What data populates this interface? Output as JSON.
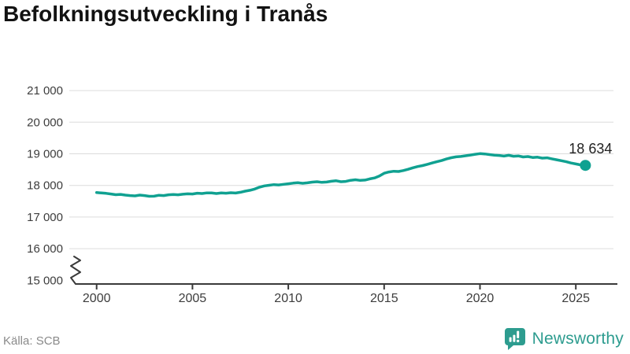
{
  "title": "Befolkningsutveckling i Tranås",
  "source": "Källa: SCB",
  "brand": {
    "name": "Newsworthy",
    "icon": "bar-chart-speech-bubble-icon",
    "color": "#2d9c8f"
  },
  "colors": {
    "line": "#10a191",
    "marker": "#10a191",
    "grid": "#dcdcdc",
    "axis": "#3a3a3a",
    "tick_label": "#3d3d3d",
    "title": "#121212",
    "source": "#8a8a8a",
    "annotation": "#222222",
    "background": "#ffffff"
  },
  "chart_data": {
    "type": "line",
    "title": "Befolkningsutveckling i Tranås",
    "xlabel": "",
    "ylabel": "",
    "legend": "none",
    "grid": "horizontal",
    "axis_break_at_bottom": true,
    "x_range": [
      2000,
      2025.5
    ],
    "ylim": [
      15000,
      21000
    ],
    "x_ticks": [
      2000,
      2005,
      2010,
      2015,
      2020,
      2025
    ],
    "y_ticks": [
      {
        "value": 15000,
        "label": "15 000",
        "gridline": false
      },
      {
        "value": 16000,
        "label": "16 000",
        "gridline": true
      },
      {
        "value": 17000,
        "label": "17 000",
        "gridline": true
      },
      {
        "value": 18000,
        "label": "18 000",
        "gridline": true
      },
      {
        "value": 19000,
        "label": "19 000",
        "gridline": true
      },
      {
        "value": 20000,
        "label": "20 000",
        "gridline": true
      },
      {
        "value": 21000,
        "label": "21 000",
        "gridline": true
      }
    ],
    "series": [
      {
        "name": "Befolkning i Tranås",
        "points": [
          [
            2000,
            17775
          ],
          [
            2000.25,
            17760
          ],
          [
            2000.5,
            17748
          ],
          [
            2000.75,
            17728
          ],
          [
            2001,
            17706
          ],
          [
            2001.25,
            17716
          ],
          [
            2001.5,
            17694
          ],
          [
            2001.75,
            17680
          ],
          [
            2002,
            17668
          ],
          [
            2002.25,
            17694
          ],
          [
            2002.5,
            17678
          ],
          [
            2002.75,
            17656
          ],
          [
            2003,
            17658
          ],
          [
            2003.25,
            17688
          ],
          [
            2003.5,
            17678
          ],
          [
            2003.75,
            17704
          ],
          [
            2004,
            17714
          ],
          [
            2004.25,
            17704
          ],
          [
            2004.5,
            17722
          ],
          [
            2004.75,
            17734
          ],
          [
            2005,
            17728
          ],
          [
            2005.25,
            17754
          ],
          [
            2005.5,
            17744
          ],
          [
            2005.75,
            17764
          ],
          [
            2006,
            17760
          ],
          [
            2006.25,
            17744
          ],
          [
            2006.5,
            17762
          ],
          [
            2006.75,
            17754
          ],
          [
            2007,
            17768
          ],
          [
            2007.25,
            17758
          ],
          [
            2007.5,
            17784
          ],
          [
            2007.75,
            17818
          ],
          [
            2008,
            17846
          ],
          [
            2008.25,
            17886
          ],
          [
            2008.5,
            17946
          ],
          [
            2008.75,
            17986
          ],
          [
            2009,
            18006
          ],
          [
            2009.25,
            18026
          ],
          [
            2009.5,
            18014
          ],
          [
            2009.75,
            18034
          ],
          [
            2010,
            18052
          ],
          [
            2010.25,
            18072
          ],
          [
            2010.5,
            18084
          ],
          [
            2010.75,
            18068
          ],
          [
            2011,
            18082
          ],
          [
            2011.25,
            18104
          ],
          [
            2011.5,
            18118
          ],
          [
            2011.75,
            18096
          ],
          [
            2012,
            18106
          ],
          [
            2012.25,
            18132
          ],
          [
            2012.5,
            18148
          ],
          [
            2012.75,
            18118
          ],
          [
            2013,
            18128
          ],
          [
            2013.25,
            18162
          ],
          [
            2013.5,
            18178
          ],
          [
            2013.75,
            18158
          ],
          [
            2014,
            18168
          ],
          [
            2014.25,
            18206
          ],
          [
            2014.5,
            18236
          ],
          [
            2014.75,
            18296
          ],
          [
            2015,
            18386
          ],
          [
            2015.25,
            18426
          ],
          [
            2015.5,
            18448
          ],
          [
            2015.75,
            18440
          ],
          [
            2016,
            18470
          ],
          [
            2016.25,
            18510
          ],
          [
            2016.5,
            18556
          ],
          [
            2016.75,
            18596
          ],
          [
            2017,
            18626
          ],
          [
            2017.25,
            18666
          ],
          [
            2017.5,
            18708
          ],
          [
            2017.75,
            18748
          ],
          [
            2018,
            18786
          ],
          [
            2018.25,
            18836
          ],
          [
            2018.5,
            18876
          ],
          [
            2018.75,
            18902
          ],
          [
            2019,
            18916
          ],
          [
            2019.25,
            18938
          ],
          [
            2019.5,
            18960
          ],
          [
            2019.75,
            18986
          ],
          [
            2020,
            19004
          ],
          [
            2020.25,
            18996
          ],
          [
            2020.5,
            18976
          ],
          [
            2020.75,
            18958
          ],
          [
            2021,
            18948
          ],
          [
            2021.25,
            18928
          ],
          [
            2021.5,
            18952
          ],
          [
            2021.75,
            18922
          ],
          [
            2022,
            18932
          ],
          [
            2022.25,
            18900
          ],
          [
            2022.5,
            18912
          ],
          [
            2022.75,
            18882
          ],
          [
            2023,
            18892
          ],
          [
            2023.25,
            18862
          ],
          [
            2023.5,
            18872
          ],
          [
            2023.75,
            18842
          ],
          [
            2024,
            18812
          ],
          [
            2024.25,
            18780
          ],
          [
            2024.5,
            18748
          ],
          [
            2024.75,
            18710
          ],
          [
            2025,
            18678
          ],
          [
            2025.25,
            18650
          ],
          [
            2025.5,
            18634
          ]
        ]
      }
    ],
    "last_point": {
      "x": 2025.5,
      "value": 18634,
      "label": "18 634"
    }
  }
}
